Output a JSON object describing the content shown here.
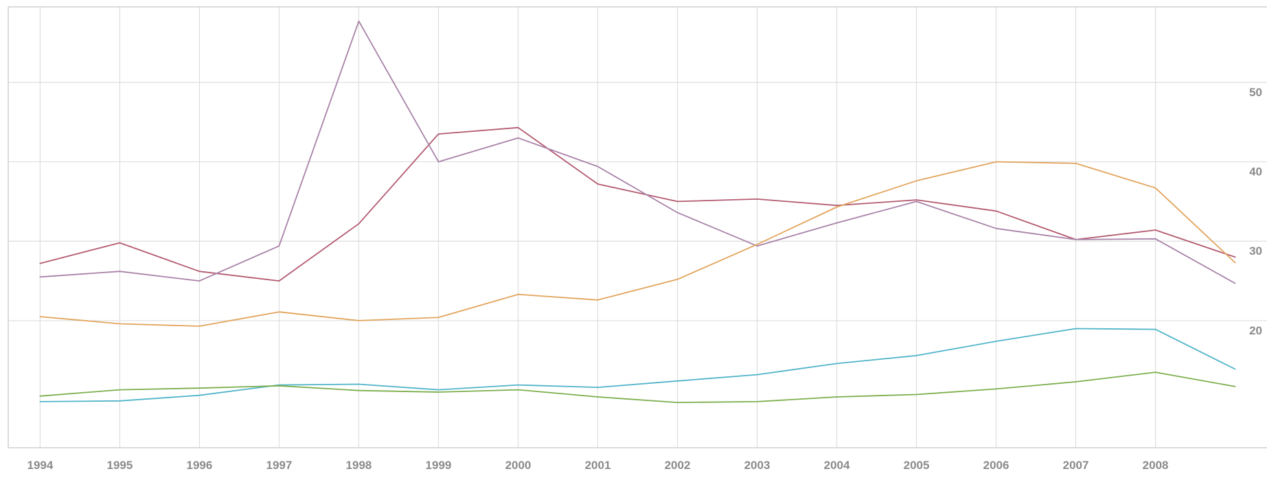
{
  "chart_data": {
    "type": "line",
    "title": "",
    "xlabel": "",
    "ylabel": "",
    "x": [
      1994,
      1995,
      1996,
      1997,
      1998,
      1999,
      2000,
      2001,
      2002,
      2003,
      2004,
      2005,
      2006,
      2007,
      2008,
      2009
    ],
    "x_tick_labels": [
      "1994",
      "1995",
      "1996",
      "1997",
      "1998",
      "1999",
      "2000",
      "2001",
      "2002",
      "2003",
      "2004",
      "2005",
      "2006",
      "2007",
      "2008"
    ],
    "y_tick_labels": [
      "50",
      "40",
      "30",
      "20"
    ],
    "y_ticks": [
      50,
      40,
      30,
      20
    ],
    "ylim": [
      4,
      59.5
    ],
    "xlim": [
      1993.6,
      2009.4
    ],
    "y_axis_side": "right",
    "grid": true,
    "legend": "none",
    "series": [
      {
        "color": "#b45a70",
        "values": [
          27.2,
          29.8,
          26.2,
          25.0,
          32.2,
          43.5,
          44.3,
          37.2,
          35.0,
          35.3,
          34.5,
          35.2,
          33.8,
          30.2,
          31.4,
          28.0
        ]
      },
      {
        "color": "#a882a8",
        "values": [
          25.5,
          26.2,
          25.0,
          29.4,
          57.7,
          40.0,
          43.0,
          39.4,
          33.6,
          29.4,
          32.3,
          35.0,
          31.6,
          30.2,
          30.3,
          24.7
        ]
      },
      {
        "color": "#e2a45c",
        "values": [
          20.5,
          19.6,
          19.3,
          21.1,
          20.0,
          20.4,
          23.3,
          22.6,
          25.2,
          29.6,
          34.3,
          37.6,
          40.0,
          39.8,
          36.7,
          27.3
        ]
      },
      {
        "color": "#4fb4c8",
        "values": [
          9.8,
          9.9,
          10.6,
          11.9,
          12.0,
          11.3,
          11.9,
          11.6,
          12.4,
          13.2,
          14.6,
          15.6,
          17.4,
          19.0,
          18.9,
          13.9
        ]
      },
      {
        "color": "#7cae4c",
        "values": [
          10.5,
          11.3,
          11.5,
          11.8,
          11.2,
          11.0,
          11.3,
          10.4,
          9.7,
          9.8,
          10.4,
          10.7,
          11.4,
          12.3,
          13.5,
          11.7
        ]
      }
    ]
  }
}
